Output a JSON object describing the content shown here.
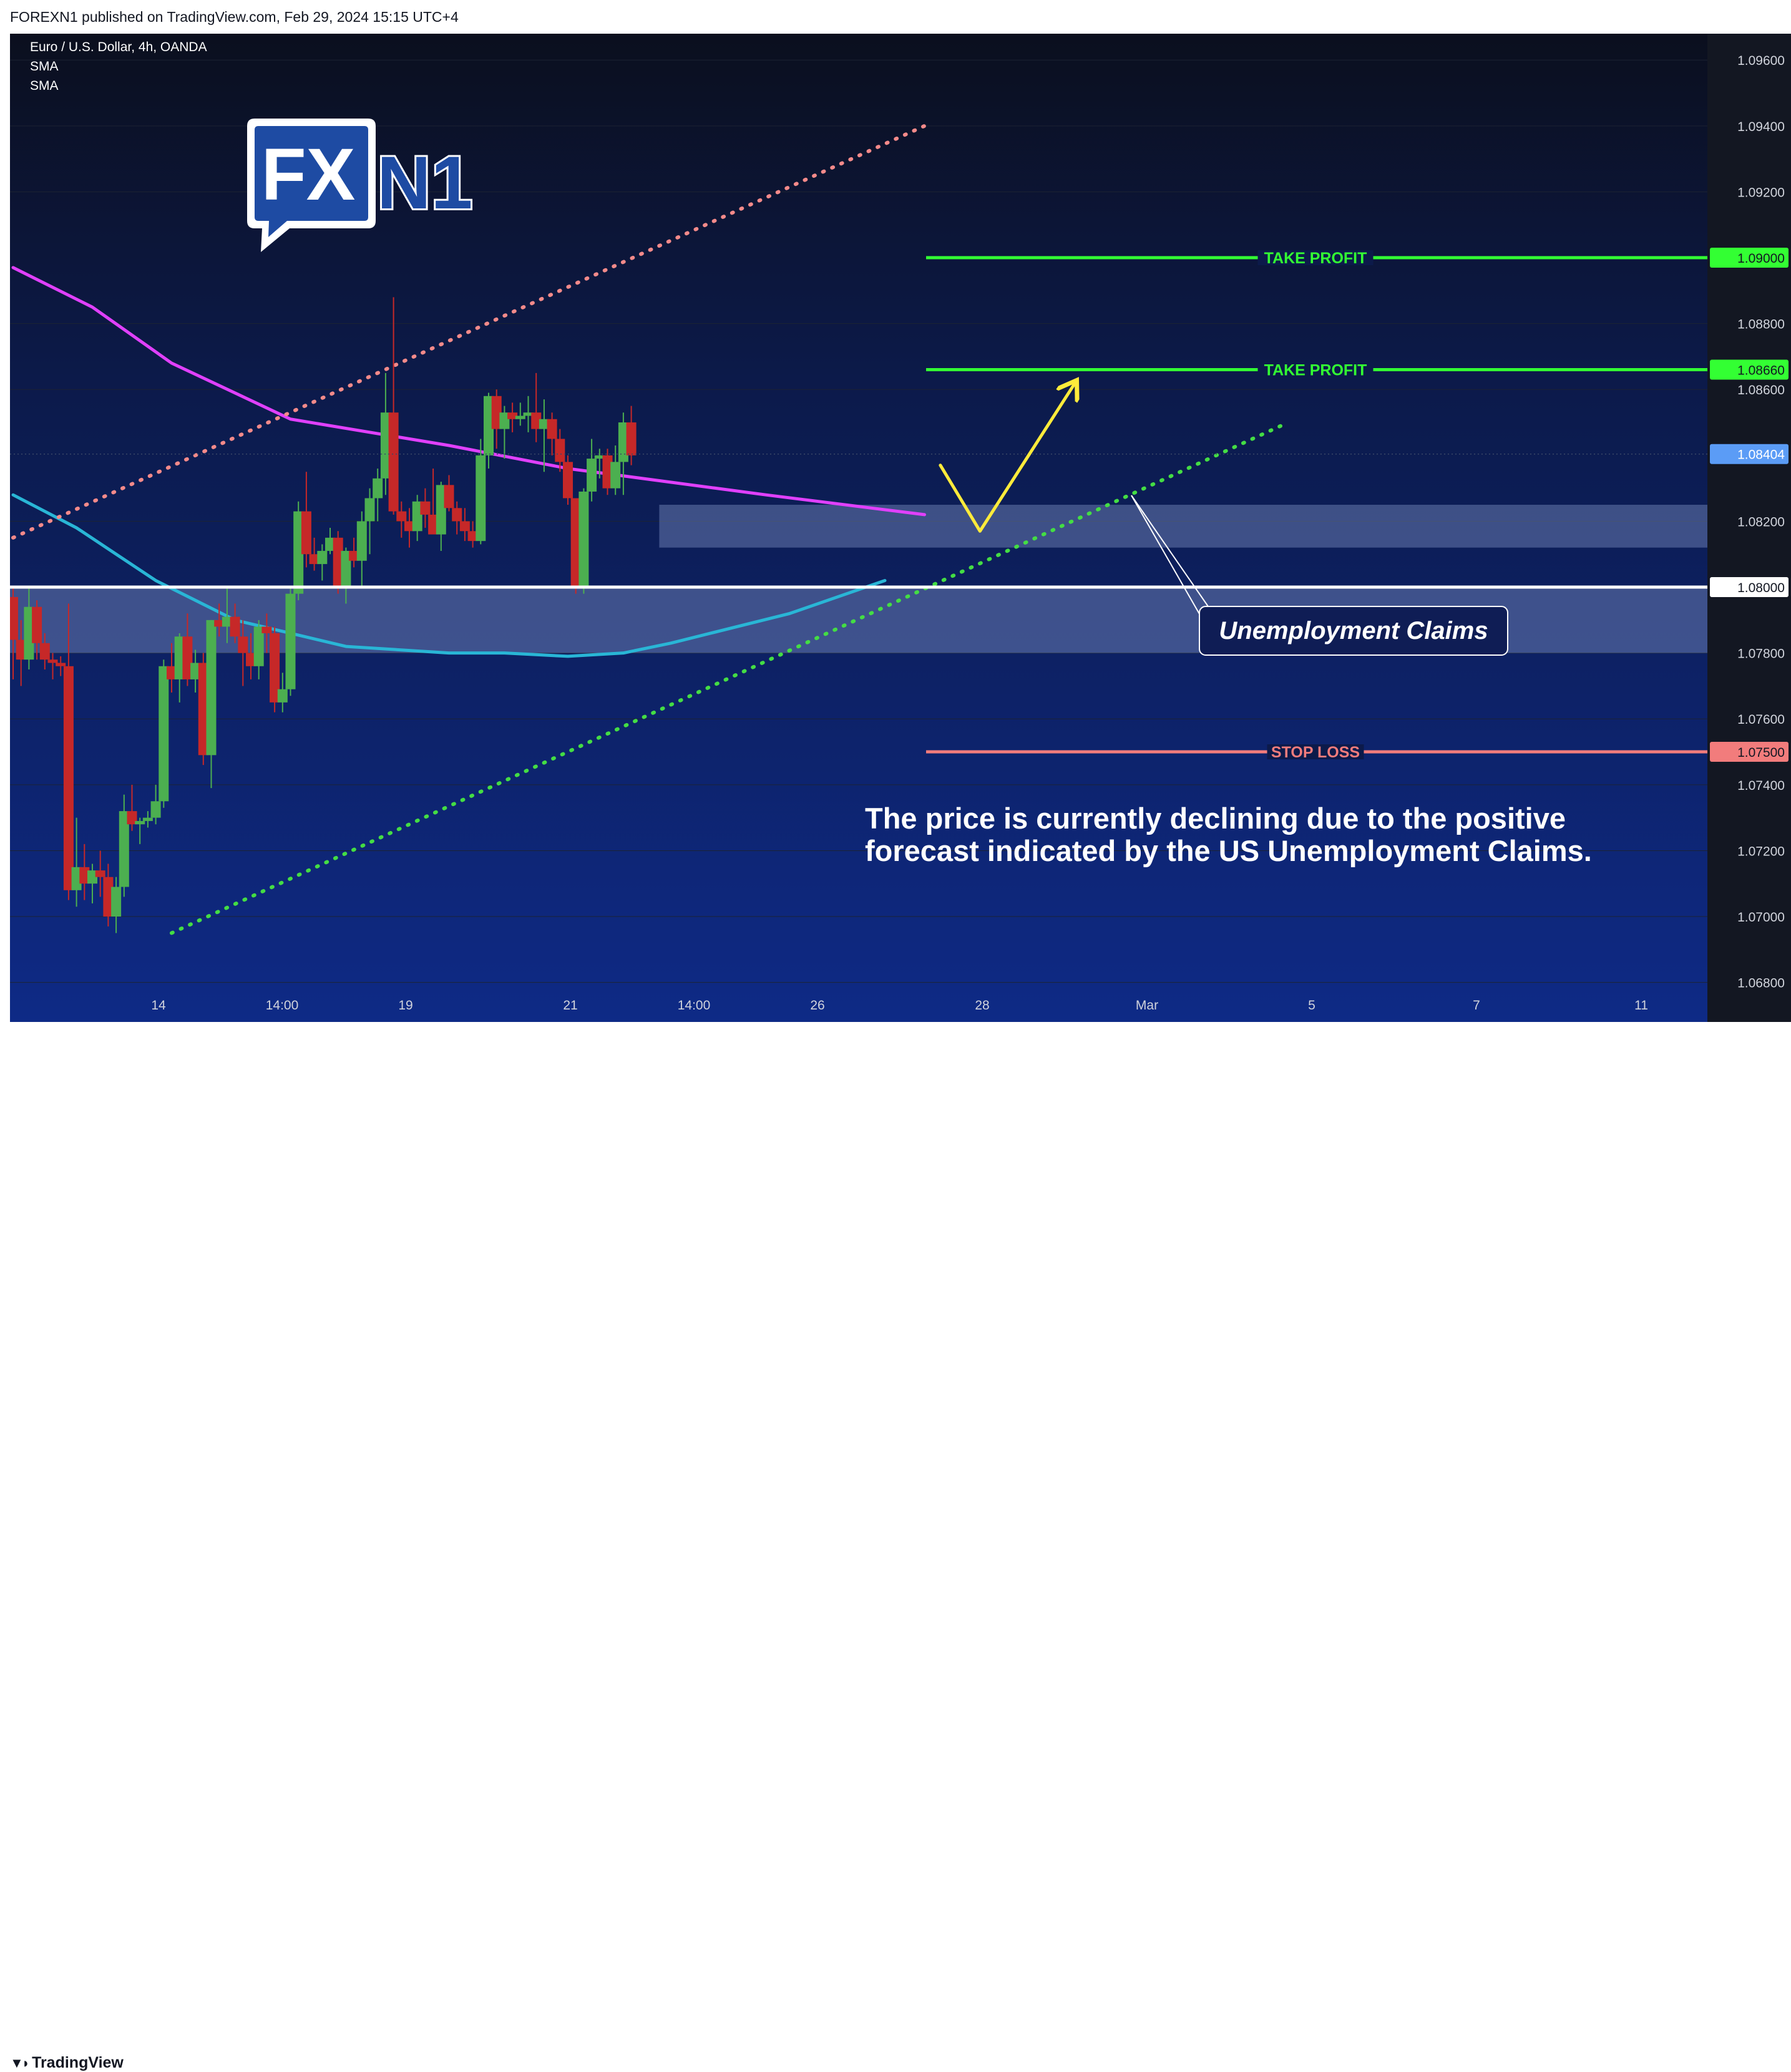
{
  "header": {
    "published": "FOREXN1 published on TradingView.com, Feb 29, 2024 15:15 UTC+4"
  },
  "legend": {
    "symbol": "Euro / U.S. Dollar, 4h, OANDA",
    "sma1": "SMA",
    "sma2": "SMA"
  },
  "logo": {
    "box_text": "FX",
    "side_text": "N1"
  },
  "footer": {
    "brand": "TradingView"
  },
  "colors": {
    "background_top": "#0b0f1e",
    "background_bottom": "#0e2a86",
    "up_candle": "#4caf50",
    "down_candle": "#c62828",
    "sma_magenta": "#e040fb",
    "sma_cyan": "#29b6d6",
    "take_profit": "#33ff33",
    "stop_loss": "#f27c7c",
    "channel_top": "#f48a8a",
    "channel_bottom": "#44dd44",
    "arrow": "#ffeb3b",
    "last_price": "#5b9cf6"
  },
  "chart_data": {
    "type": "candlestick",
    "symbol": "Euro / U.S. Dollar",
    "timeframe": "4h",
    "source": "OANDA",
    "ylim": [
      1.0668,
      1.0968
    ],
    "y_ticks": [
      "1.09600",
      "1.09400",
      "1.09200",
      "1.08800",
      "1.08600",
      "1.08200",
      "1.07800",
      "1.07600",
      "1.07400",
      "1.07200",
      "1.07000",
      "1.06800"
    ],
    "x_ticks": [
      "14",
      "14:00",
      "19",
      "21",
      "14:00",
      "26",
      "28",
      "Mar",
      "5",
      "7",
      "11"
    ],
    "candles": [
      [
        1.0797,
        1.08,
        1.0772,
        1.0784
      ],
      [
        1.0784,
        1.079,
        1.077,
        1.0778
      ],
      [
        1.0778,
        1.08,
        1.0775,
        1.0794
      ],
      [
        1.0794,
        1.0796,
        1.0778,
        1.0783
      ],
      [
        1.0783,
        1.0786,
        1.0775,
        1.0778
      ],
      [
        1.0778,
        1.078,
        1.0772,
        1.0777
      ],
      [
        1.0777,
        1.0779,
        1.0773,
        1.0776
      ],
      [
        1.0776,
        1.0795,
        1.0705,
        1.0708
      ],
      [
        1.0708,
        1.073,
        1.0703,
        1.0715
      ],
      [
        1.0715,
        1.0722,
        1.0705,
        1.071
      ],
      [
        1.071,
        1.0716,
        1.0704,
        1.0714
      ],
      [
        1.0714,
        1.072,
        1.0706,
        1.0712
      ],
      [
        1.0712,
        1.0716,
        1.0697,
        1.07
      ],
      [
        1.07,
        1.0712,
        1.0695,
        1.0709
      ],
      [
        1.0709,
        1.0737,
        1.0706,
        1.0732
      ],
      [
        1.0732,
        1.074,
        1.0726,
        1.0728
      ],
      [
        1.0728,
        1.073,
        1.0722,
        1.0729
      ],
      [
        1.0729,
        1.0732,
        1.0727,
        1.073
      ],
      [
        1.073,
        1.074,
        1.0728,
        1.0735
      ],
      [
        1.0735,
        1.0778,
        1.0733,
        1.0776
      ],
      [
        1.0776,
        1.0783,
        1.0768,
        1.0772
      ],
      [
        1.0772,
        1.0786,
        1.0765,
        1.0785
      ],
      [
        1.0785,
        1.0792,
        1.077,
        1.0772
      ],
      [
        1.0772,
        1.0781,
        1.0768,
        1.0777
      ],
      [
        1.0777,
        1.078,
        1.0746,
        1.0749
      ],
      [
        1.0749,
        1.079,
        1.0739,
        1.079
      ],
      [
        1.079,
        1.0795,
        1.0785,
        1.0788
      ],
      [
        1.0788,
        1.08,
        1.0783,
        1.0791
      ],
      [
        1.0791,
        1.0795,
        1.0783,
        1.0785
      ],
      [
        1.0785,
        1.079,
        1.077,
        1.078
      ],
      [
        1.078,
        1.0786,
        1.0772,
        1.0776
      ],
      [
        1.0776,
        1.079,
        1.0772,
        1.0788
      ],
      [
        1.0788,
        1.0792,
        1.078,
        1.0786
      ],
      [
        1.0786,
        1.0788,
        1.0762,
        1.0765
      ],
      [
        1.0765,
        1.0774,
        1.0762,
        1.0769
      ],
      [
        1.0769,
        1.08,
        1.0767,
        1.0798
      ],
      [
        1.0798,
        1.0826,
        1.0796,
        1.0823
      ],
      [
        1.0823,
        1.0835,
        1.0806,
        1.081
      ],
      [
        1.081,
        1.0815,
        1.0805,
        1.0807
      ],
      [
        1.0807,
        1.0813,
        1.0802,
        1.0811
      ],
      [
        1.0811,
        1.0818,
        1.081,
        1.0815
      ],
      [
        1.0815,
        1.0817,
        1.0798,
        1.08
      ],
      [
        1.08,
        1.0812,
        1.0795,
        1.0811
      ],
      [
        1.0811,
        1.0815,
        1.0806,
        1.0808
      ],
      [
        1.0808,
        1.0823,
        1.08,
        1.082
      ],
      [
        1.082,
        1.083,
        1.081,
        1.0827
      ],
      [
        1.0827,
        1.0836,
        1.082,
        1.0833
      ],
      [
        1.0833,
        1.0865,
        1.0828,
        1.0853
      ],
      [
        1.0853,
        1.0888,
        1.0822,
        1.0823
      ],
      [
        1.0823,
        1.0826,
        1.0815,
        1.082
      ],
      [
        1.082,
        1.0824,
        1.0812,
        1.0817
      ],
      [
        1.0817,
        1.0828,
        1.0814,
        1.0826
      ],
      [
        1.0826,
        1.083,
        1.0818,
        1.0822
      ],
      [
        1.0822,
        1.0836,
        1.0816,
        1.0816
      ],
      [
        1.0816,
        1.0832,
        1.0811,
        1.0831
      ],
      [
        1.0831,
        1.0834,
        1.0823,
        1.0824
      ],
      [
        1.0824,
        1.0826,
        1.0816,
        1.082
      ],
      [
        1.082,
        1.0824,
        1.0814,
        1.0817
      ],
      [
        1.0817,
        1.082,
        1.0812,
        1.0814
      ],
      [
        1.0814,
        1.0845,
        1.0813,
        1.084
      ],
      [
        1.084,
        1.0859,
        1.0836,
        1.0858
      ],
      [
        1.0858,
        1.086,
        1.0842,
        1.0848
      ],
      [
        1.0848,
        1.0855,
        1.0839,
        1.0853
      ],
      [
        1.0853,
        1.0856,
        1.0847,
        1.0851
      ],
      [
        1.0851,
        1.0856,
        1.0849,
        1.0852
      ],
      [
        1.0852,
        1.0858,
        1.0847,
        1.0853
      ],
      [
        1.0853,
        1.0865,
        1.0844,
        1.0848
      ],
      [
        1.0848,
        1.0857,
        1.0835,
        1.0851
      ],
      [
        1.0851,
        1.0853,
        1.084,
        1.0845
      ],
      [
        1.0845,
        1.0848,
        1.0835,
        1.0838
      ],
      [
        1.0838,
        1.084,
        1.0825,
        1.0827
      ],
      [
        1.0827,
        1.0827,
        1.0798,
        1.08
      ],
      [
        1.08,
        1.083,
        1.0798,
        1.0829
      ],
      [
        1.0829,
        1.0845,
        1.0826,
        1.0839
      ],
      [
        1.0839,
        1.0842,
        1.0833,
        1.084
      ],
      [
        1.084,
        1.0842,
        1.0828,
        1.083
      ],
      [
        1.083,
        1.0843,
        1.0828,
        1.0838
      ],
      [
        1.0838,
        1.0853,
        1.0828,
        1.085
      ],
      [
        1.085,
        1.0855,
        1.0837,
        1.084
      ]
    ],
    "series": [
      {
        "name": "SMA",
        "color": "#e040fb",
        "x": [
          0,
          10,
          20,
          35,
          55,
          70,
          95,
          115
        ],
        "y": [
          1.0897,
          1.0885,
          1.0868,
          1.0851,
          1.0843,
          1.0836,
          1.0828,
          1.0822
        ]
      },
      {
        "name": "SMA",
        "color": "#29b6d6",
        "x": [
          0,
          8,
          18,
          28,
          42,
          55,
          62,
          70,
          77,
          83,
          88,
          98,
          110
        ],
        "y": [
          1.0828,
          1.0818,
          1.0802,
          1.079,
          1.0782,
          1.078,
          1.078,
          1.0779,
          1.078,
          1.0783,
          1.0786,
          1.0792,
          1.0802
        ]
      },
      {
        "name": "",
        "color": "#f48a8a",
        "style": "dotted",
        "x": [
          0,
          115
        ],
        "y": [
          1.0815,
          1.094
        ]
      },
      {
        "name": "",
        "color": "#44dd44",
        "style": "dotted",
        "x": [
          20,
          160
        ],
        "y": [
          1.0695,
          1.0849
        ]
      }
    ],
    "levels": [
      {
        "label": "TAKE PROFIT",
        "price": 1.09,
        "price_label": "1.09000",
        "color": "#33ff33"
      },
      {
        "label": "TAKE PROFIT",
        "price": 1.0866,
        "price_label": "1.08660",
        "color": "#33ff33"
      },
      {
        "label": "STOP LOSS",
        "price": 1.075,
        "price_label": "1.07500",
        "color": "#f27c7c"
      },
      {
        "label": "",
        "price": 1.08,
        "price_label": "1.08000",
        "color": "#ffffff"
      }
    ],
    "last_price": {
      "value": 1.08404,
      "label": "1.08404"
    },
    "zones": [
      {
        "x0": 82,
        "x1": "end",
        "y0": 1.0812,
        "y1": 1.0825
      },
      {
        "x0": 0,
        "x1": "end",
        "y0": 1.078,
        "y1": 1.08
      }
    ],
    "annotation": {
      "text": "Unemployment Claims"
    },
    "forecast_path": {
      "x": [
        117,
        122,
        134
      ],
      "y": [
        1.0837,
        1.0817,
        1.0862
      ]
    },
    "note": [
      "The price is currently declining due to the positive",
      "forecast indicated by the US Unemployment Claims."
    ]
  }
}
